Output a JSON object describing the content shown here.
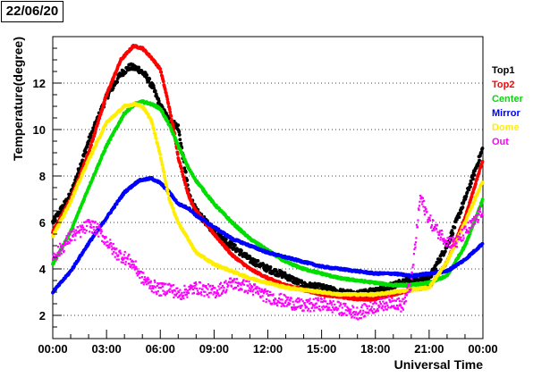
{
  "chart_data": {
    "type": "scatter",
    "title": "22/06/20",
    "xlabel": "Universal Time",
    "ylabel": "Temperature(degree)",
    "xlim": [
      0,
      24
    ],
    "ylim": [
      1,
      14
    ],
    "xticks": [
      0,
      3,
      6,
      9,
      12,
      15,
      18,
      21,
      24
    ],
    "xtick_labels": [
      "00:00",
      "03:00",
      "06:00",
      "09:00",
      "12:00",
      "15:00",
      "18:00",
      "21:00",
      "00:00"
    ],
    "yticks": [
      2,
      4,
      6,
      8,
      10,
      12
    ],
    "ytick_labels": [
      "2",
      "4",
      "6",
      "8",
      "10",
      "12"
    ],
    "grid": "horizontal dotted",
    "legend_position": "right",
    "series": [
      {
        "name": "Top1",
        "color": "#000000",
        "x": [
          0,
          1,
          2,
          3,
          3.8,
          4.3,
          4.8,
          5.2,
          5.6,
          6,
          6.5,
          7,
          7.6,
          8,
          9,
          10,
          11,
          12,
          13,
          14,
          15,
          16,
          17,
          18,
          19,
          20,
          20.5,
          21,
          22,
          23,
          24
        ],
        "y": [
          6,
          7.2,
          9.5,
          11.4,
          12.4,
          12.7,
          12.6,
          12.3,
          11.8,
          11,
          10.4,
          10.1,
          7.2,
          6.5,
          5.6,
          5,
          4.4,
          4,
          3.7,
          3.3,
          3.2,
          3,
          2.9,
          3.1,
          3.3,
          3.6,
          3.5,
          3.6,
          5,
          7,
          9.2
        ]
      },
      {
        "name": "Top2",
        "color": "#ff0000",
        "x": [
          0,
          1,
          2,
          3,
          3.8,
          4.5,
          5,
          5.5,
          6,
          6.4,
          6.8,
          7,
          7.6,
          8,
          9,
          10,
          11,
          12,
          13,
          14,
          15,
          16,
          17,
          18,
          19,
          20,
          21,
          22,
          23,
          24
        ],
        "y": [
          5.6,
          7,
          9,
          11.5,
          13,
          13.6,
          13.5,
          13.1,
          12.6,
          11.3,
          9.8,
          8.8,
          7.1,
          6.5,
          5.5,
          4.6,
          4,
          3.6,
          3.3,
          3.1,
          2.9,
          2.8,
          2.7,
          2.7,
          2.9,
          3.1,
          3.2,
          4.3,
          6.2,
          8.7
        ]
      },
      {
        "name": "Center",
        "color": "#00dd00",
        "x": [
          0,
          1,
          2,
          3,
          4,
          4.6,
          5,
          5.5,
          6,
          6.5,
          7,
          7.6,
          8,
          9,
          10,
          11,
          12,
          13,
          14,
          15,
          16,
          17,
          18,
          19,
          20,
          21,
          22,
          23,
          24
        ],
        "y": [
          4.2,
          5.6,
          7.5,
          9.3,
          10.7,
          11.1,
          11.2,
          11.1,
          10.9,
          10.2,
          9.3,
          8.3,
          7.8,
          6.8,
          6,
          5.3,
          4.8,
          4.3,
          4,
          3.8,
          3.6,
          3.5,
          3.4,
          3.3,
          3.3,
          3.4,
          3.7,
          5,
          7
        ]
      },
      {
        "name": "Mirror",
        "color": "#0000ff",
        "x": [
          0,
          1,
          2,
          3,
          4,
          4.8,
          5.5,
          6,
          6.5,
          7,
          7.6,
          8,
          9,
          10,
          11,
          12,
          13,
          14,
          15,
          16,
          17,
          18,
          19,
          20,
          21,
          22,
          23,
          24
        ],
        "y": [
          3,
          3.9,
          5.1,
          6.2,
          7.3,
          7.8,
          7.9,
          7.7,
          7.3,
          6.8,
          6.6,
          6.3,
          5.8,
          5.3,
          5,
          4.7,
          4.5,
          4.3,
          4.1,
          4,
          3.9,
          3.8,
          3.8,
          3.7,
          3.8,
          3.9,
          4.4,
          5.1
        ]
      },
      {
        "name": "Dome",
        "color": "#ffee00",
        "x": [
          0,
          1,
          2,
          3,
          4,
          4.6,
          5,
          5.5,
          6,
          6.5,
          7,
          8,
          9,
          10,
          11,
          12,
          13,
          14,
          15,
          16,
          17,
          18,
          19,
          20,
          21,
          22,
          23,
          24
        ],
        "y": [
          5.4,
          6.9,
          8.7,
          10.3,
          11,
          11.1,
          11,
          10.4,
          8.9,
          7,
          6,
          4.7,
          4.2,
          3.9,
          3.6,
          3.4,
          3.2,
          3.1,
          3,
          2.9,
          2.9,
          2.9,
          3,
          3.1,
          3.2,
          4.3,
          6,
          7.8
        ]
      },
      {
        "name": "Out",
        "color": "#ff00ff",
        "x": [
          0,
          0.5,
          1,
          1.5,
          2,
          2.5,
          3,
          3.5,
          4,
          4.5,
          5,
          5.5,
          6,
          6.5,
          7,
          8,
          9,
          10,
          11,
          12,
          13,
          14,
          15,
          16,
          17,
          18,
          19,
          19.5,
          20,
          20.5,
          21,
          21.5,
          22,
          22.5,
          23,
          23.5,
          24
        ],
        "y": [
          4.5,
          4.9,
          5.4,
          5.6,
          5.9,
          5.7,
          5.2,
          4.7,
          4.5,
          4.2,
          3.6,
          3.3,
          3.1,
          3.2,
          2.9,
          3.2,
          3,
          3.4,
          3.2,
          2.8,
          2.6,
          2.4,
          2.5,
          2.3,
          2.1,
          2.4,
          2.6,
          2.4,
          3.4,
          7.1,
          6.1,
          5.6,
          5.2,
          5.1,
          5.6,
          6,
          6.6
        ]
      }
    ]
  }
}
